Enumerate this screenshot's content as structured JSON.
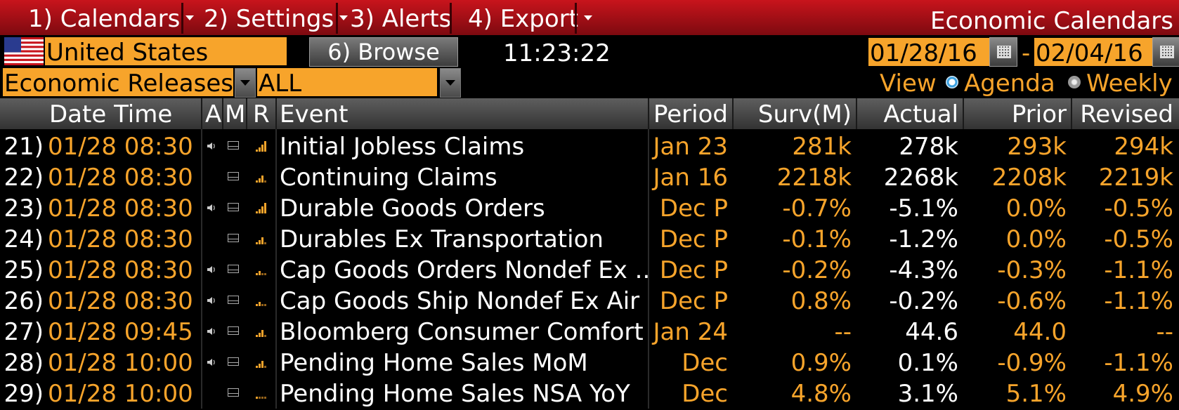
{
  "menu": {
    "items": [
      {
        "label": "1) Calendars",
        "caret": true
      },
      {
        "label": "2) Settings",
        "caret": true
      },
      {
        "label": "3) Alerts",
        "caret": false
      },
      {
        "label": "4) Export",
        "caret": true
      }
    ],
    "title": "Economic Calendars"
  },
  "toolbar": {
    "country": "United States",
    "browse_label": "6) Browse",
    "time": "11:23:22",
    "start_date": "01/28/16",
    "date_separator": "-",
    "end_date": "02/04/16",
    "category": "Economic Releases",
    "filter": "ALL",
    "view_label": "View",
    "view_options": [
      "Agenda",
      "Weekly"
    ],
    "view_selected": "Agenda"
  },
  "table": {
    "headers": {
      "datetime": "Date Time",
      "a": "A",
      "m": "M",
      "r": "R",
      "event": "Event",
      "period": "Period",
      "surv": "Surv(M)",
      "actual": "Actual",
      "prior": "Prior",
      "revised": "Revised"
    },
    "rows": [
      {
        "num": "21)",
        "datetime": "01/28 08:30",
        "alert": true,
        "mail": true,
        "rel": 4,
        "event": "Initial Jobless Claims",
        "period": "Jan 23",
        "surv": "281k",
        "actual": "278k",
        "prior": "293k",
        "revised": "294k"
      },
      {
        "num": "22)",
        "datetime": "01/28 08:30",
        "alert": false,
        "mail": true,
        "rel": 3,
        "event": "Continuing Claims",
        "period": "Jan 16",
        "surv": "2218k",
        "actual": "2268k",
        "prior": "2208k",
        "revised": "2219k"
      },
      {
        "num": "23)",
        "datetime": "01/28 08:30",
        "alert": true,
        "mail": true,
        "rel": 4,
        "event": "Durable Goods Orders",
        "period": "Dec P",
        "surv": "-0.7%",
        "actual": "-5.1%",
        "prior": "0.0%",
        "revised": "-0.5%"
      },
      {
        "num": "24)",
        "datetime": "01/28 08:30",
        "alert": false,
        "mail": true,
        "rel": 3,
        "event": "Durables Ex Transportation",
        "period": "Dec P",
        "surv": "-0.1%",
        "actual": "-1.2%",
        "prior": "0.0%",
        "revised": "-0.5%"
      },
      {
        "num": "25)",
        "datetime": "01/28 08:30",
        "alert": true,
        "mail": true,
        "rel": 2,
        "event": "Cap Goods Orders Nondef Ex ...",
        "period": "Dec P",
        "surv": "-0.2%",
        "actual": "-4.3%",
        "prior": "-0.3%",
        "revised": "-1.1%"
      },
      {
        "num": "26)",
        "datetime": "01/28 08:30",
        "alert": true,
        "mail": true,
        "rel": 2,
        "event": "Cap Goods Ship Nondef Ex Air",
        "period": "Dec P",
        "surv": "0.8%",
        "actual": "-0.2%",
        "prior": "-0.6%",
        "revised": "-1.1%"
      },
      {
        "num": "27)",
        "datetime": "01/28 09:45",
        "alert": true,
        "mail": true,
        "rel": 3,
        "event": "Bloomberg Consumer Comfort",
        "period": "Jan 24",
        "surv": "--",
        "actual": "44.6",
        "prior": "44.0",
        "revised": "--"
      },
      {
        "num": "28)",
        "datetime": "01/28 10:00",
        "alert": true,
        "mail": true,
        "rel": 3,
        "event": "Pending Home Sales MoM",
        "period": "Dec",
        "surv": "0.9%",
        "actual": "0.1%",
        "prior": "-0.9%",
        "revised": "-1.1%"
      },
      {
        "num": "29)",
        "datetime": "01/28 10:00",
        "alert": false,
        "mail": true,
        "rel": 1,
        "event": "Pending Home Sales NSA YoY",
        "period": "Dec",
        "surv": "4.8%",
        "actual": "3.1%",
        "prior": "5.1%",
        "revised": "4.9%"
      }
    ]
  },
  "colors": {
    "accent_orange": "#f7a42b",
    "menubar_red": "#c8141c",
    "background": "#000000"
  }
}
